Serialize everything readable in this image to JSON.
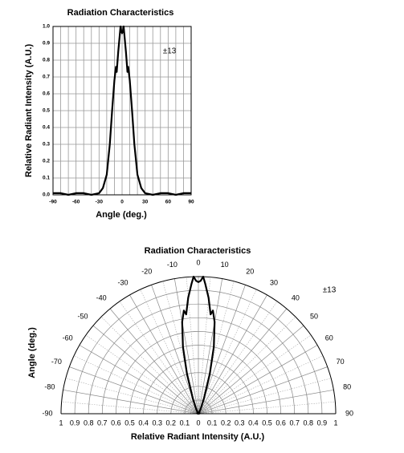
{
  "chart_data": [
    {
      "type": "line",
      "title": "Radiation Characteristics",
      "x_label": "Angle (deg.)",
      "y_label": "Relative Radiant Intensity (A.U.)",
      "annotation": "±13",
      "x": [
        -90,
        -80,
        -70,
        -60,
        -50,
        -40,
        -30,
        -25,
        -20,
        -16,
        -13,
        -10,
        -8,
        -7,
        -5,
        -3,
        -2,
        -1,
        0,
        1,
        2,
        3,
        5,
        7,
        8,
        10,
        13,
        16,
        20,
        25,
        30,
        40,
        50,
        60,
        70,
        80,
        90
      ],
      "values": [
        0.01,
        0.01,
        0.0,
        0.01,
        0.01,
        0.0,
        0.01,
        0.04,
        0.12,
        0.3,
        0.5,
        0.68,
        0.76,
        0.73,
        0.85,
        0.95,
        1.0,
        0.97,
        0.96,
        0.97,
        1.0,
        0.95,
        0.85,
        0.73,
        0.76,
        0.68,
        0.5,
        0.3,
        0.12,
        0.04,
        0.01,
        0.0,
        0.01,
        0.01,
        0.0,
        0.01,
        0.01
      ],
      "color": "#000000",
      "grid": true,
      "xlim": [
        -90,
        90
      ],
      "xticks": [
        -90,
        -60,
        -30,
        0,
        30,
        60,
        90
      ],
      "ylim": [
        0,
        1
      ],
      "yticks": [
        {
          "value": 0,
          "label": "0.0"
        },
        0.1,
        0.2,
        0.3,
        0.4,
        0.5,
        0.6,
        0.7,
        0.8,
        0.9,
        {
          "value": 1,
          "label": "1.0"
        }
      ]
    },
    {
      "type": "polar",
      "title": "Radiation Characteristics",
      "x_label": "Relative Radiant Intensity (A.U.)",
      "y_label": "Angle (deg.)",
      "annotation": "±13",
      "x": [
        -90,
        -80,
        -70,
        -60,
        -50,
        -40,
        -30,
        -25,
        -20,
        -16,
        -13,
        -10,
        -8,
        -7,
        -5,
        -3,
        -2,
        -1,
        0,
        1,
        2,
        3,
        5,
        7,
        8,
        10,
        13,
        16,
        20,
        25,
        30,
        40,
        50,
        60,
        70,
        80,
        90
      ],
      "values": [
        0.01,
        0.01,
        0.0,
        0.01,
        0.01,
        0.0,
        0.01,
        0.04,
        0.12,
        0.3,
        0.5,
        0.68,
        0.76,
        0.73,
        0.85,
        0.95,
        1.0,
        0.97,
        0.96,
        0.97,
        1.0,
        0.95,
        0.85,
        0.73,
        0.76,
        0.68,
        0.5,
        0.3,
        0.12,
        0.04,
        0.01,
        0.0,
        0.01,
        0.01,
        0.0,
        0.01,
        0.01
      ],
      "color": "#000000",
      "grid": true,
      "thetalim": [
        -90,
        90
      ],
      "thetaticks": [
        -90,
        -80,
        -70,
        -60,
        -50,
        -40,
        -30,
        -20,
        -10,
        0,
        10,
        20,
        30,
        40,
        50,
        60,
        70,
        80,
        90
      ],
      "rlim": [
        0,
        1
      ],
      "rticks": [
        0,
        0.1,
        0.2,
        0.3,
        0.4,
        0.5,
        0.6,
        0.7,
        0.8,
        0.9,
        1
      ]
    }
  ]
}
